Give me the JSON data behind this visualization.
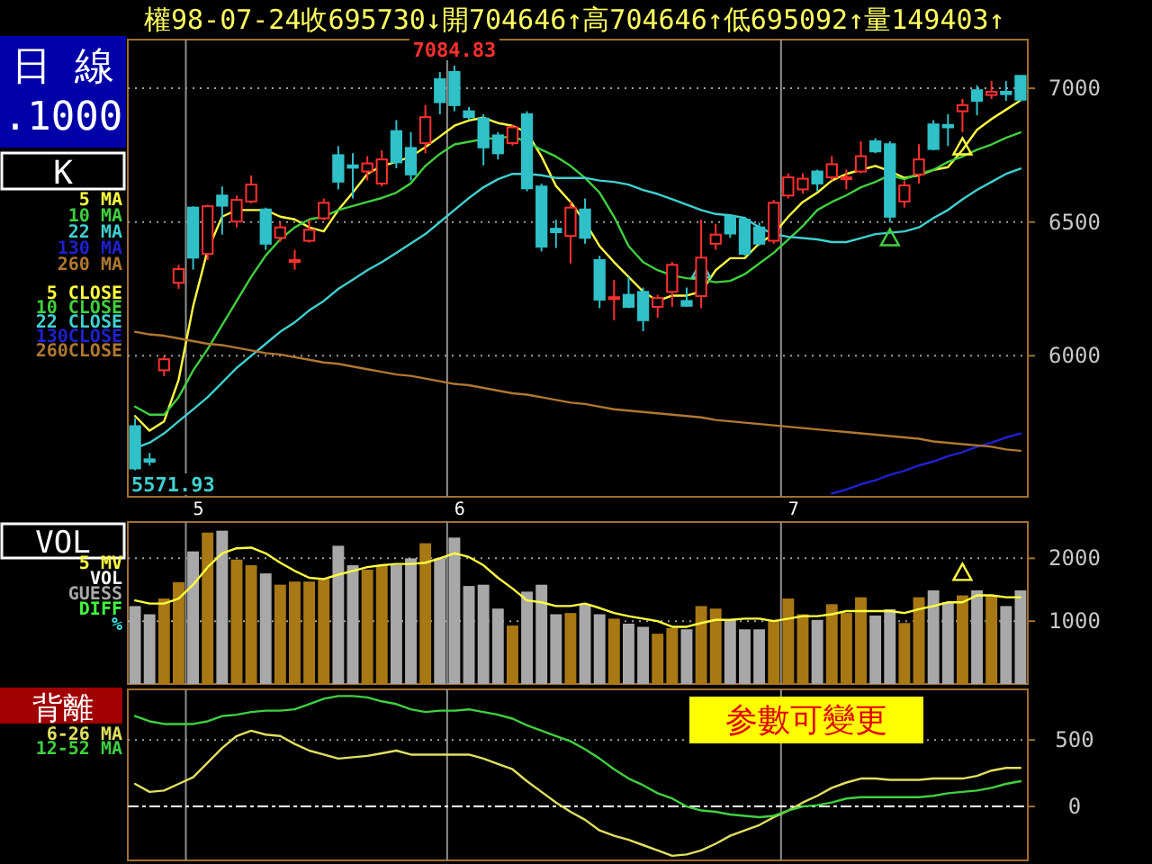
{
  "chart_data": [
    {
      "type": "candlestick",
      "title": "權98-07-24收695730↓開704646↑高704646↑低695092↑量149403↑",
      "subtitle": "K",
      "categories": [
        null,
        null,
        null,
        null,
        "5",
        null,
        null,
        null,
        null,
        null,
        null,
        null,
        null,
        null,
        null,
        null,
        null,
        null,
        null,
        null,
        null,
        null,
        "6",
        null,
        null,
        null,
        null,
        null,
        null,
        null,
        null,
        null,
        null,
        null,
        null,
        null,
        null,
        null,
        null,
        null,
        null,
        null,
        null,
        null,
        null,
        "7",
        null,
        null,
        null,
        null,
        null,
        null,
        null,
        null,
        null,
        null,
        null,
        null,
        null,
        null,
        null,
        null
      ],
      "ohlc": [
        [
          5737,
          5766,
          5571.93,
          5579
        ],
        [
          5613,
          5637,
          5590,
          5604
        ],
        [
          5946,
          5998,
          5924,
          5987
        ],
        [
          6273,
          6340,
          6250,
          6324
        ],
        [
          6554,
          6559,
          6322,
          6367
        ],
        [
          6381,
          6565,
          6358,
          6559
        ],
        [
          6599,
          6633,
          6453,
          6561
        ],
        [
          6502,
          6599,
          6480,
          6583
        ],
        [
          6577,
          6674,
          6570,
          6640
        ],
        [
          6547,
          6554,
          6396,
          6419
        ],
        [
          6441,
          6498,
          6426,
          6480
        ],
        [
          6351,
          6396,
          6322,
          6358
        ],
        [
          6430,
          6509,
          6423,
          6471
        ],
        [
          6514,
          6588,
          6507,
          6572
        ],
        [
          6750,
          6784,
          6622,
          6651
        ],
        [
          6712,
          6757,
          6588,
          6703
        ],
        [
          6689,
          6746,
          6655,
          6719
        ],
        [
          6644,
          6768,
          6633,
          6734
        ],
        [
          6840,
          6881,
          6701,
          6723
        ],
        [
          6777,
          6836,
          6655,
          6678
        ],
        [
          6795,
          6937,
          6757,
          6892
        ],
        [
          7034,
          7061,
          6903,
          6948
        ],
        [
          7061,
          7084.83,
          6914,
          6937
        ],
        [
          6914,
          6930,
          6881,
          6892
        ],
        [
          6887,
          6903,
          6712,
          6779
        ],
        [
          6824,
          6836,
          6734,
          6757
        ],
        [
          6795,
          6863,
          6786,
          6854
        ],
        [
          6903,
          6914,
          6615,
          6626
        ],
        [
          6633,
          6644,
          6390,
          6408
        ],
        [
          6475,
          6509,
          6403,
          6462
        ],
        [
          6448,
          6577,
          6345,
          6554
        ],
        [
          6547,
          6588,
          6419,
          6441
        ],
        [
          6358,
          6374,
          6178,
          6210
        ],
        [
          6212,
          6284,
          6133,
          6219
        ],
        [
          6228,
          6295,
          6178,
          6183
        ],
        [
          6239,
          6255,
          6092,
          6133
        ],
        [
          6183,
          6228,
          6142,
          6216
        ],
        [
          6239,
          6351,
          6183,
          6340
        ],
        [
          6205,
          6255,
          6183,
          6187
        ],
        [
          6223,
          6509,
          6178,
          6367
        ],
        [
          6419,
          6493,
          6396,
          6453
        ],
        [
          6520,
          6525,
          6441,
          6457
        ],
        [
          6509,
          6520,
          6374,
          6381
        ],
        [
          6480,
          6498,
          6412,
          6419
        ],
        [
          6430,
          6583,
          6419,
          6572
        ],
        [
          6599,
          6682,
          6588,
          6667
        ],
        [
          6622,
          6682,
          6606,
          6662
        ],
        [
          6689,
          6696,
          6615,
          6644
        ],
        [
          6667,
          6746,
          6655,
          6716
        ],
        [
          6660,
          6696,
          6622,
          6667
        ],
        [
          6689,
          6802,
          6682,
          6746
        ],
        [
          6802,
          6813,
          6757,
          6764
        ],
        [
          6791,
          6802,
          6498,
          6520
        ],
        [
          6577,
          6655,
          6554,
          6637
        ],
        [
          6678,
          6791,
          6644,
          6734
        ],
        [
          6865,
          6881,
          6768,
          6773
        ],
        [
          6863,
          6903,
          6784,
          6854
        ],
        [
          6914,
          6960,
          6836,
          6937
        ],
        [
          6993,
          7011,
          6899,
          6953
        ],
        [
          6975,
          7027,
          6960,
          6987
        ],
        [
          6987,
          7027,
          6953,
          6978
        ],
        [
          7046.46,
          7046.46,
          6950.92,
          6957.3
        ]
      ],
      "series": [
        {
          "type": "line",
          "name": "5 MA",
          "color": "#ffff40",
          "values": [
            5775,
            5720,
            5755,
            5910,
            6185,
            6395,
            6520,
            6545,
            6545,
            6545,
            6520,
            6510,
            6480,
            6465,
            6545,
            6610,
            6680,
            6710,
            6725,
            6745,
            6780,
            6820,
            6860,
            6880,
            6890,
            6870,
            6860,
            6835,
            6745,
            6635,
            6575,
            6500,
            6410,
            6350,
            6295,
            6240,
            6205,
            6225,
            6225,
            6240,
            6320,
            6365,
            6365,
            6420,
            6455,
            6520,
            6575,
            6610,
            6655,
            6680,
            6695,
            6710,
            6690,
            6665,
            6675,
            6695,
            6705,
            6770,
            6845,
            6885,
            6920,
            6955
          ]
        },
        {
          "type": "line",
          "name": "10 MA",
          "color": "#40d040",
          "values": [
            5810,
            5780,
            5780,
            5845,
            5945,
            6025,
            6115,
            6205,
            6295,
            6375,
            6435,
            6480,
            6510,
            6520,
            6545,
            6560,
            6575,
            6590,
            6610,
            6645,
            6710,
            6755,
            6790,
            6800,
            6810,
            6815,
            6820,
            6800,
            6770,
            6745,
            6710,
            6665,
            6610,
            6520,
            6410,
            6350,
            6320,
            6300,
            6290,
            6285,
            6275,
            6280,
            6305,
            6345,
            6385,
            6435,
            6485,
            6545,
            6575,
            6600,
            6630,
            6650,
            6675,
            6660,
            6680,
            6695,
            6725,
            6745,
            6770,
            6790,
            6815,
            6835
          ]
        },
        {
          "type": "line",
          "name": "22 MA",
          "color": "#40d0d0",
          "values": [
            5655,
            5675,
            5710,
            5755,
            5800,
            5845,
            5900,
            5955,
            6000,
            6045,
            6090,
            6125,
            6170,
            6205,
            6250,
            6285,
            6320,
            6350,
            6385,
            6420,
            6455,
            6500,
            6545,
            6590,
            6630,
            6660,
            6680,
            6680,
            6675,
            6665,
            6665,
            6665,
            6655,
            6650,
            6640,
            6620,
            6605,
            6585,
            6565,
            6545,
            6530,
            6525,
            6515,
            6480,
            6455,
            6445,
            6440,
            6435,
            6425,
            6425,
            6440,
            6455,
            6460,
            6465,
            6480,
            6515,
            6545,
            6585,
            6620,
            6650,
            6680,
            6700
          ]
        },
        {
          "type": "line",
          "name": "130 MA",
          "color": "#2020d0",
          "values": [
            null,
            null,
            null,
            null,
            null,
            null,
            null,
            null,
            null,
            null,
            null,
            null,
            null,
            null,
            null,
            null,
            null,
            null,
            null,
            null,
            null,
            null,
            null,
            null,
            null,
            null,
            null,
            null,
            null,
            null,
            null,
            null,
            null,
            null,
            null,
            null,
            null,
            null,
            null,
            null,
            null,
            null,
            null,
            null,
            null,
            null,
            null,
            null,
            5485,
            5500,
            5520,
            5535,
            5555,
            5570,
            5590,
            5605,
            5625,
            5640,
            5660,
            5675,
            5695,
            5710
          ]
        },
        {
          "type": "line",
          "name": "260 MA",
          "color": "#b07830",
          "values": [
            6090,
            6080,
            6075,
            6065,
            6055,
            6045,
            6040,
            6030,
            6020,
            6010,
            6005,
            5995,
            5985,
            5975,
            5970,
            5960,
            5950,
            5940,
            5930,
            5925,
            5915,
            5905,
            5895,
            5890,
            5880,
            5870,
            5860,
            5855,
            5845,
            5835,
            5825,
            5820,
            5810,
            5800,
            5795,
            5790,
            5785,
            5780,
            5775,
            5770,
            5760,
            5755,
            5750,
            5745,
            5740,
            5735,
            5730,
            5725,
            5720,
            5715,
            5710,
            5705,
            5700,
            5695,
            5690,
            5680,
            5675,
            5670,
            5665,
            5660,
            5650,
            5645
          ]
        },
        {
          "type": "scatter",
          "marker": "triangle",
          "colors": [
            null,
            null,
            null,
            null,
            null,
            null,
            null,
            null,
            null,
            null,
            null,
            null,
            null,
            null,
            null,
            null,
            null,
            null,
            null,
            null,
            null,
            null,
            null,
            null,
            null,
            null,
            null,
            null,
            null,
            null,
            null,
            null,
            null,
            null,
            null,
            null,
            null,
            null,
            null,
            "#40d0d0",
            null,
            null,
            null,
            null,
            null,
            null,
            null,
            null,
            null,
            null,
            null,
            null,
            "#40d040",
            null,
            null,
            null,
            null,
            "#ffff40",
            null,
            null,
            null,
            null
          ],
          "values": [
            null,
            null,
            null,
            null,
            null,
            null,
            null,
            null,
            null,
            null,
            null,
            null,
            null,
            null,
            null,
            null,
            null,
            null,
            null,
            null,
            null,
            null,
            null,
            null,
            null,
            null,
            null,
            null,
            null,
            null,
            null,
            null,
            null,
            null,
            null,
            null,
            null,
            null,
            null,
            6320,
            null,
            null,
            null,
            null,
            null,
            null,
            null,
            null,
            null,
            null,
            null,
            null,
            6440,
            null,
            null,
            null,
            null,
            6780,
            null,
            null,
            null,
            null
          ]
        }
      ],
      "ylim": [
        5473,
        7182
      ],
      "yticks": [
        6000,
        6500,
        7000
      ],
      "grid": true,
      "legend": "left",
      "annotations": [
        "日 線",
        ".1000",
        "5 CLOSE",
        "10 CLOSE",
        "22 CLOSE",
        "130CLOSE",
        "260CLOSE",
        {
          "text": "7084.83",
          "y": 7084.83
        },
        "5571.93"
      ]
    },
    {
      "type": "bar",
      "title": "VOL",
      "categories": [
        null,
        null,
        null,
        null,
        "5",
        null,
        null,
        null,
        null,
        null,
        null,
        null,
        null,
        null,
        null,
        null,
        null,
        null,
        null,
        null,
        null,
        null,
        "6",
        null,
        null,
        null,
        null,
        null,
        null,
        null,
        null,
        null,
        null,
        null,
        null,
        null,
        null,
        null,
        null,
        null,
        null,
        null,
        null,
        null,
        null,
        "7",
        null,
        null,
        null,
        null,
        null,
        null,
        null,
        null,
        null,
        null,
        null,
        null,
        null,
        null,
        null,
        null
      ],
      "series": [
        {
          "type": "bar",
          "colors": [
            "#a8a8a8",
            "#a8a8a8",
            "#a87814",
            "#a87814",
            "#a8a8a8",
            "#a87814",
            "#a8a8a8",
            "#a87814",
            "#a87814",
            "#a8a8a8",
            "#a87814",
            "#a87814",
            "#a87814",
            "#a87814",
            "#a8a8a8",
            "#a8a8a8",
            "#a87814",
            "#a87814",
            "#a8a8a8",
            "#a8a8a8",
            "#a87814",
            "#a8a8a8",
            "#a8a8a8",
            "#a8a8a8",
            "#a8a8a8",
            "#a8a8a8",
            "#a87814",
            "#a8a8a8",
            "#a8a8a8",
            "#a8a8a8",
            "#a87814",
            "#a8a8a8",
            "#a8a8a8",
            "#a87814",
            "#a8a8a8",
            "#a8a8a8",
            "#a87814",
            "#a87814",
            "#a8a8a8",
            "#a87814",
            "#a87814",
            "#a8a8a8",
            "#a8a8a8",
            "#a8a8a8",
            "#a87814",
            "#a87814",
            "#a87814",
            "#a8a8a8",
            "#a87814",
            "#a87814",
            "#a87814",
            "#a8a8a8",
            "#a8a8a8",
            "#a87814",
            "#a87814",
            "#a8a8a8",
            "#a8a8a8",
            "#a87814",
            "#a8a8a8",
            "#a87814",
            "#a8a8a8",
            "#a8a8a8"
          ],
          "values": [
            1240,
            1110,
            1360,
            1620,
            2110,
            2410,
            2440,
            1980,
            1890,
            1760,
            1580,
            1630,
            1630,
            1670,
            2200,
            1890,
            1820,
            1890,
            1890,
            2000,
            2240,
            2000,
            2330,
            1560,
            1580,
            1200,
            930,
            1470,
            1580,
            1110,
            1130,
            1270,
            1110,
            1040,
            960,
            910,
            800,
            890,
            870,
            1240,
            1200,
            1020,
            870,
            870,
            1020,
            1360,
            1110,
            1020,
            1270,
            1130,
            1380,
            1090,
            1190,
            970,
            1380,
            1490,
            1300,
            1410,
            1490,
            1410,
            1240,
            1490
          ]
        },
        {
          "type": "line",
          "name": "5 MV",
          "color": "#ffff40",
          "values": [
            1330,
            1280,
            1280,
            1360,
            1580,
            1860,
            2080,
            2160,
            2170,
            2080,
            1930,
            1800,
            1690,
            1670,
            1740,
            1800,
            1860,
            1890,
            1910,
            1910,
            1930,
            2000,
            2080,
            2020,
            1890,
            1690,
            1520,
            1330,
            1300,
            1240,
            1240,
            1280,
            1210,
            1130,
            1080,
            1040,
            1000,
            910,
            910,
            970,
            1020,
            1020,
            1040,
            1040,
            1000,
            1040,
            1080,
            1080,
            1110,
            1160,
            1160,
            1160,
            1160,
            1130,
            1190,
            1240,
            1300,
            1300,
            1410,
            1410,
            1380,
            1380
          ]
        },
        {
          "type": "scatter",
          "marker": "triangle",
          "color": "#ffff40",
          "values": [
            null,
            null,
            null,
            null,
            null,
            null,
            null,
            null,
            null,
            null,
            null,
            null,
            null,
            null,
            null,
            null,
            null,
            null,
            null,
            null,
            null,
            null,
            null,
            null,
            null,
            null,
            null,
            null,
            null,
            null,
            null,
            null,
            null,
            null,
            null,
            null,
            null,
            null,
            null,
            null,
            null,
            null,
            null,
            null,
            null,
            null,
            null,
            null,
            null,
            null,
            null,
            null,
            null,
            null,
            null,
            null,
            null,
            1770,
            null,
            null,
            null,
            null
          ]
        }
      ],
      "ylim": [
        0,
        2578
      ],
      "yticks": [
        1000,
        2000
      ],
      "grid": true,
      "legend": "left",
      "tick_labels": "y",
      "annotations": [
        "VOL",
        "GUESS",
        "DIFF",
        "%"
      ]
    },
    {
      "type": "line",
      "title": "背離",
      "categories": [
        null,
        null,
        null,
        null,
        "5",
        null,
        null,
        null,
        null,
        null,
        null,
        null,
        null,
        null,
        null,
        null,
        null,
        null,
        null,
        null,
        null,
        null,
        "6",
        null,
        null,
        null,
        null,
        null,
        null,
        null,
        null,
        null,
        null,
        null,
        null,
        null,
        null,
        null,
        null,
        null,
        null,
        null,
        null,
        null,
        null,
        "7",
        null,
        null,
        null,
        null,
        null,
        null,
        null,
        null,
        null,
        null,
        null,
        null,
        null,
        null,
        null,
        null
      ],
      "series": [
        {
          "name": "6-26 MA",
          "color": "#e0e060",
          "values": [
            170,
            110,
            120,
            170,
            220,
            330,
            440,
            530,
            570,
            540,
            530,
            470,
            420,
            390,
            360,
            370,
            380,
            400,
            420,
            390,
            390,
            390,
            390,
            390,
            360,
            320,
            280,
            190,
            110,
            30,
            -40,
            -100,
            -180,
            -220,
            -250,
            -290,
            -330,
            -370,
            -360,
            -330,
            -280,
            -220,
            -180,
            -140,
            -80,
            -30,
            30,
            80,
            140,
            180,
            210,
            210,
            200,
            200,
            200,
            210,
            210,
            210,
            230,
            270,
            290,
            290
          ]
        },
        {
          "name": "12-52 MA",
          "color": "#40d040",
          "values": [
            680,
            640,
            620,
            620,
            620,
            640,
            680,
            690,
            710,
            720,
            720,
            730,
            770,
            810,
            830,
            830,
            820,
            790,
            770,
            730,
            710,
            720,
            720,
            730,
            710,
            690,
            660,
            610,
            570,
            530,
            490,
            430,
            360,
            280,
            210,
            160,
            100,
            60,
            0,
            -30,
            -40,
            -60,
            -70,
            -80,
            -70,
            -30,
            0,
            10,
            30,
            60,
            70,
            70,
            70,
            70,
            70,
            80,
            100,
            110,
            120,
            140,
            170,
            190
          ]
        }
      ],
      "ylim": [
        -405,
        880
      ],
      "yticks": [
        0,
        500
      ],
      "grid": true,
      "legend": "left",
      "tick_labels": "y",
      "ref_lines": [
        {
          "axis": "y",
          "value": 0,
          "color": "#ffffff",
          "line_style": "dashed"
        }
      ],
      "annotations": [
        "参數可變更"
      ]
    }
  ]
}
